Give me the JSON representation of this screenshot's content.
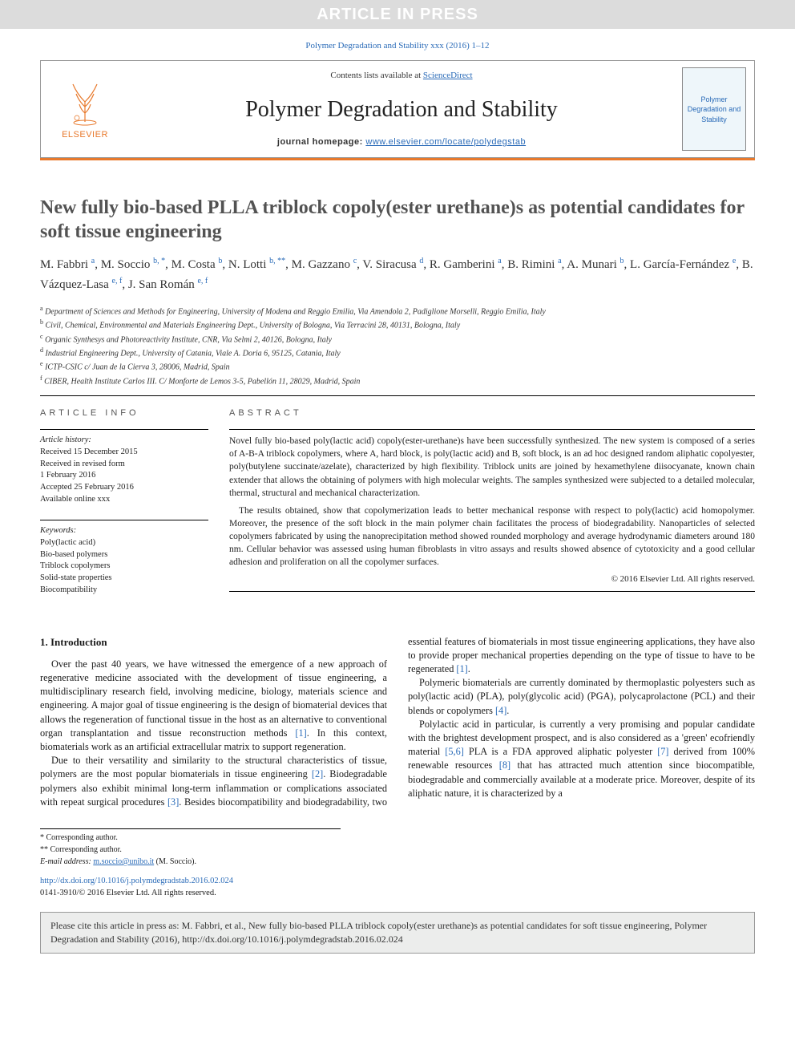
{
  "banner": {
    "text": "ARTICLE IN PRESS"
  },
  "journal_ref": "Polymer Degradation and Stability xxx (2016) 1–12",
  "header": {
    "contents_prefix": "Contents lists available at ",
    "contents_link": "ScienceDirect",
    "journal_name": "Polymer Degradation and Stability",
    "homepage_label": "journal homepage: ",
    "homepage_url": "www.elsevier.com/locate/polydegstab",
    "elsevier": "ELSEVIER",
    "cover_text": "Polymer Degradation and Stability"
  },
  "title": "New fully bio-based PLLA triblock copoly(ester urethane)s as potential candidates for soft tissue engineering",
  "authors_html": "M. Fabbri <sup>a</sup>, M. Soccio <sup>b, *</sup>, M. Costa <sup>b</sup>, N. Lotti <sup>b, **</sup>, M. Gazzano <sup>c</sup>, V. Siracusa <sup>d</sup>, R. Gamberini <sup>a</sup>, B. Rimini <sup>a</sup>, A. Munari <sup>b</sup>, L. García-Fernández <sup>e</sup>, B. Vázquez-Lasa <sup>e, f</sup>, J. San Román <sup>e, f</sup>",
  "affils": [
    {
      "sup": "a",
      "text": "Department of Sciences and Methods for Engineering, University of Modena and Reggio Emilia, Via Amendola 2, Padiglione Morselli, Reggio Emilia, Italy"
    },
    {
      "sup": "b",
      "text": "Civil, Chemical, Environmental and Materials Engineering Dept., University of Bologna, Via Terracini 28, 40131, Bologna, Italy"
    },
    {
      "sup": "c",
      "text": "Organic Synthesys and Photoreactivity Institute, CNR, Via Selmi 2, 40126, Bologna, Italy"
    },
    {
      "sup": "d",
      "text": "Industrial Engineering Dept., University of Catania, Viale A. Doria 6, 95125, Catania, Italy"
    },
    {
      "sup": "e",
      "text": "ICTP-CSIC c/ Juan de la Cierva 3, 28006, Madrid, Spain"
    },
    {
      "sup": "f",
      "text": "CIBER, Health Institute Carlos III. C/ Monforte de Lemos 3-5, Pabellón 11, 28029, Madrid, Spain"
    }
  ],
  "info": {
    "label": "ARTICLE INFO",
    "history_label": "Article history:",
    "history": [
      "Received 15 December 2015",
      "Received in revised form",
      "1 February 2016",
      "Accepted 25 February 2016",
      "Available online xxx"
    ],
    "keywords_label": "Keywords:",
    "keywords": [
      "Poly(lactic acid)",
      "Bio-based polymers",
      "Triblock copolymers",
      "Solid-state properties",
      "Biocompatibility"
    ]
  },
  "abstract": {
    "label": "ABSTRACT",
    "paragraphs": [
      "Novel fully bio-based poly(lactic acid) copoly(ester-urethane)s have been successfully synthesized. The new system is composed of a series of A-B-A triblock copolymers, where A, hard block, is poly(lactic acid) and B, soft block, is an ad hoc designed random aliphatic copolyester, poly(butylene succinate/azelate), characterized by high flexibility. Triblock units are joined by hexamethylene diisocyanate, known chain extender that allows the obtaining of polymers with high molecular weights. The samples synthesized were subjected to a detailed molecular, thermal, structural and mechanical characterization.",
      "The results obtained, show that copolymerization leads to better mechanical response with respect to poly(lactic) acid homopolymer. Moreover, the presence of the soft block in the main polymer chain facilitates the process of biodegradability. Nanoparticles of selected copolymers fabricated by using the nanoprecipitation method showed rounded morphology and average hydrodynamic diameters around 180 nm. Cellular behavior was assessed using human fibroblasts in vitro assays and results showed absence of cytotoxicity and a good cellular adhesion and proliferation on all the copolymer surfaces."
    ],
    "copyright": "© 2016 Elsevier Ltd. All rights reserved."
  },
  "introduction": {
    "heading": "1. Introduction",
    "p1": "Over the past 40 years, we have witnessed the emergence of a new approach of regenerative medicine associated with the development of tissue engineering, a multidisciplinary research field, involving medicine, biology, materials science and engineering. A major goal of tissue engineering is the design of biomaterial devices that allows the regeneration of functional tissue in the host as an alternative to conventional organ transplantation and tissue reconstruction methods ",
    "p1_ref": "[1]",
    "p1_tail": ". In this context, biomaterials work as an artificial extracellular matrix to support regeneration.",
    "p2": "Due to their versatility and similarity to the structural characteristics of tissue, polymers are the most popular biomaterials in ",
    "p3": "tissue engineering ",
    "p3_ref1": "[2]",
    "p3_mid": ". Biodegradable polymers also exhibit minimal long-term inflammation or complications associated with repeat surgical procedures ",
    "p3_ref2": "[3]",
    "p3_tail": ". Besides biocompatibility and biodegradability, two essential features of biomaterials in most tissue engineering applications, they have also to provide proper mechanical properties depending on the type of tissue to have to be regenerated ",
    "p3_ref3": "[1]",
    "p3_end": ".",
    "p4": "Polymeric biomaterials are currently dominated by thermoplastic polyesters such as poly(lactic acid) (PLA), poly(glycolic acid) (PGA), polycaprolactone (PCL) and their blends or copolymers ",
    "p4_ref": "[4]",
    "p4_end": ".",
    "p5": "Polylactic acid in particular, is currently a very promising and popular candidate with the brightest development prospect, and is also considered as a 'green' ecofriendly material ",
    "p5_ref1": "[5,6]",
    "p5_mid1": " PLA is a FDA approved aliphatic polyester ",
    "p5_ref2": "[7]",
    "p5_mid2": " derived from 100% renewable resources ",
    "p5_ref3": "[8]",
    "p5_tail": " that has attracted much attention since biocompatible, biodegradable and commercially available at a moderate price. Moreover, despite of its aliphatic nature, it is characterized by a"
  },
  "footnotes": {
    "l1": "* Corresponding author.",
    "l2": "** Corresponding author.",
    "email_label": "E-mail address: ",
    "email": "m.soccio@unibo.it",
    "email_tail": " (M. Soccio)."
  },
  "doi": {
    "url": "http://dx.doi.org/10.1016/j.polymdegradstab.2016.02.024",
    "issn_line": "0141-3910/© 2016 Elsevier Ltd. All rights reserved."
  },
  "cite_box": "Please cite this article in press as: M. Fabbri, et al., New fully bio-based PLLA triblock copoly(ester urethane)s as potential candidates for soft tissue engineering, Polymer Degradation and Stability (2016), http://dx.doi.org/10.1016/j.polymdegradstab.2016.02.024",
  "colors": {
    "link": "#2a6bb8",
    "orange": "#e8792c",
    "banner_bg": "#dcdcdc",
    "cite_bg": "#ecedec"
  }
}
